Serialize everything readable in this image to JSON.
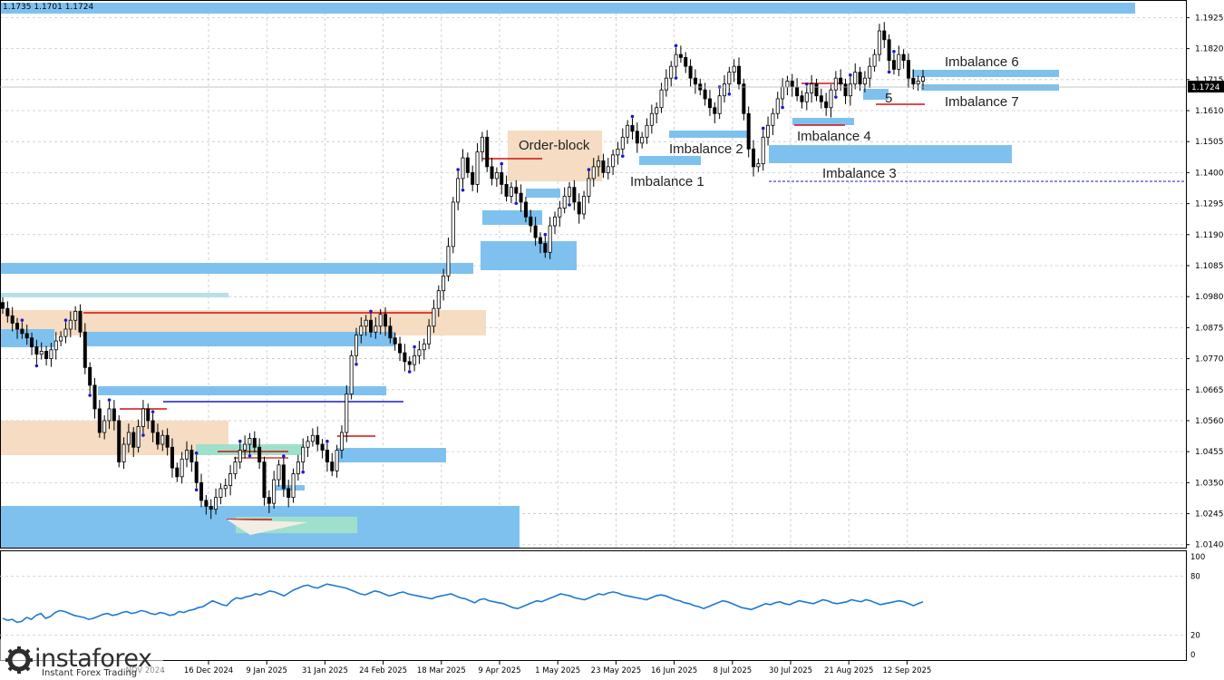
{
  "ohlc_readout": "1.1735 1.1701 1.1724",
  "chart_data": [
    {
      "type": "candlestick",
      "title": "",
      "price_scale": [
        "1.1925",
        "1.1820",
        "1.1715",
        "1.1610",
        "1.1505",
        "1.1400",
        "1.1295",
        "1.1190",
        "1.1085",
        "1.0980",
        "1.0875",
        "1.0770",
        "1.0665",
        "1.0560",
        "1.0455",
        "1.0350",
        "1.0245",
        "1.0140"
      ],
      "ylim": [
        1.013,
        1.196
      ],
      "current_price": "1.1724",
      "date_labels": [
        "16 Dec 2024",
        "9 Jan 2025",
        "31 Jan 2025",
        "24 Feb 2025",
        "18 Mar 2025",
        "9 Apr 2025",
        "1 May 2025",
        "23 May 2025",
        "16 Jun 2025",
        "8 Jul 2025",
        "30 Jul 2025",
        "21 Aug 2025",
        "12 Sep 2025"
      ],
      "partial_date_label": "NOV 2024",
      "series": [
        {
          "values": [
            1.094,
            1.0915,
            1.089,
            1.087,
            1.0855,
            1.084,
            1.081,
            1.0785,
            1.0795,
            1.077,
            1.08,
            1.083,
            1.0845,
            1.087,
            1.09,
            1.093,
            1.086,
            1.074,
            1.068,
            1.06,
            1.052,
            1.056,
            1.06,
            1.056,
            1.042,
            1.048,
            1.052,
            1.047,
            1.054,
            1.06,
            1.056,
            1.052,
            1.048,
            1.051,
            1.047,
            1.04,
            1.037,
            1.043,
            1.046,
            1.042,
            1.035,
            1.029,
            1.027,
            1.026,
            1.03,
            1.033,
            1.034,
            1.038,
            1.042,
            1.046,
            1.048,
            1.05,
            1.047,
            1.042,
            1.03,
            1.028,
            1.036,
            1.041,
            1.033,
            1.03,
            1.038,
            1.042,
            1.047,
            1.049,
            1.051,
            1.048,
            1.046,
            1.042,
            1.039,
            1.046,
            1.052,
            1.065,
            1.078,
            1.085,
            1.088,
            1.09,
            1.086,
            1.088,
            1.092,
            1.088,
            1.084,
            1.082,
            1.079,
            1.076,
            1.075,
            1.078,
            1.08,
            1.082,
            1.088,
            1.094,
            1.1,
            1.105,
            1.115,
            1.13,
            1.138,
            1.145,
            1.14,
            1.136,
            1.147,
            1.152,
            1.142,
            1.138,
            1.14,
            1.136,
            1.132,
            1.135,
            1.133,
            1.13,
            1.125,
            1.122,
            1.118,
            1.116,
            1.113,
            1.122,
            1.125,
            1.128,
            1.132,
            1.135,
            1.13,
            1.126,
            1.132,
            1.138,
            1.142,
            1.144,
            1.14,
            1.142,
            1.146,
            1.148,
            1.152,
            1.156,
            1.154,
            1.15,
            1.152,
            1.156,
            1.16,
            1.162,
            1.168,
            1.172,
            1.176,
            1.18,
            1.179,
            1.176,
            1.172,
            1.17,
            1.168,
            1.165,
            1.162,
            1.16,
            1.166,
            1.17,
            1.174,
            1.176,
            1.17,
            1.16,
            1.148,
            1.142,
            1.143,
            1.152,
            1.156,
            1.16,
            1.165,
            1.169,
            1.171,
            1.169,
            1.166,
            1.164,
            1.167,
            1.17,
            1.166,
            1.164,
            1.162,
            1.168,
            1.172,
            1.17,
            1.166,
            1.17,
            1.174,
            1.17,
            1.172,
            1.176,
            1.18,
            1.188,
            1.185,
            1.178,
            1.175,
            1.18,
            1.178,
            1.172,
            1.17,
            1.171,
            1.1724
          ]
        }
      ],
      "levels": [
        {
          "price": 1.14,
          "label": "",
          "style": "dotted"
        }
      ],
      "annotations": [
        "Order-block",
        "Imbalance 1",
        "Imbalance 2",
        "Imbalance 3",
        "Imbalance 4",
        "5",
        "Imbalance 6",
        "Imbalance 7"
      ]
    },
    {
      "type": "line",
      "indicator_scale": [
        "100",
        "80",
        "20",
        "0"
      ],
      "ylim": [
        0,
        100
      ],
      "series": [
        {
          "values": [
            37,
            35,
            36,
            33,
            34,
            38,
            36,
            40,
            42,
            37,
            39,
            43,
            45,
            44,
            42,
            40,
            39,
            38,
            36,
            37,
            39,
            41,
            42,
            40,
            41,
            43,
            44,
            42,
            43,
            45,
            44,
            42,
            41,
            43,
            42,
            40,
            41,
            44,
            43,
            45,
            46,
            48,
            49,
            52,
            55,
            53,
            51,
            50,
            55,
            58,
            57,
            59,
            60,
            62,
            61,
            63,
            65,
            64,
            62,
            60,
            63,
            66,
            68,
            70,
            71,
            69,
            68,
            70,
            72,
            71,
            70,
            69,
            68,
            66,
            64,
            62,
            61,
            63,
            65,
            64,
            62,
            60,
            61,
            63,
            64,
            62,
            61,
            60,
            59,
            58,
            57,
            59,
            60,
            61,
            62,
            60,
            58,
            57,
            55,
            53,
            56,
            57,
            55,
            54,
            53,
            52,
            50,
            48,
            47,
            49,
            51,
            53,
            55,
            54,
            56,
            58,
            60,
            62,
            61,
            60,
            58,
            57,
            56,
            58,
            60,
            62,
            61,
            63,
            64,
            63,
            61,
            60,
            59,
            58,
            57,
            56,
            58,
            60,
            61,
            60,
            58,
            56,
            55,
            53,
            52,
            50,
            49,
            47,
            49,
            51,
            53,
            55,
            54,
            52,
            50,
            48,
            47,
            46,
            48,
            50,
            52,
            51,
            53,
            54,
            52,
            51,
            53,
            55,
            54,
            53,
            52,
            54,
            56,
            55,
            53,
            52,
            53,
            54,
            56,
            55,
            54,
            56,
            55,
            53,
            51,
            52,
            53,
            54,
            55,
            54,
            52,
            50,
            52,
            54
          ]
        }
      ]
    }
  ],
  "logo": {
    "title": "instaforex",
    "subtitle": "Instant Forex Trading"
  },
  "colors": {
    "imbalance": "#7fc1ee",
    "order_block": "#f5dcc2",
    "support_line": "#1a1acc",
    "swing_line": "#d01010",
    "indicator": "#1e78d2"
  }
}
